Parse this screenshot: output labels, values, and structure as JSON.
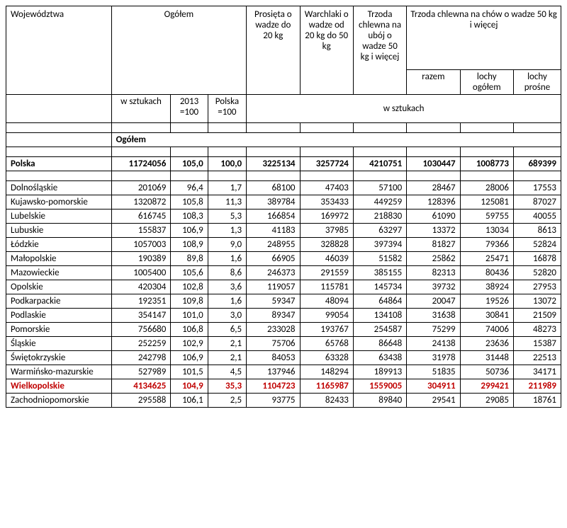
{
  "header": {
    "wojewodztwa": "Województwa",
    "ogolem": "Ogółem",
    "prosieta": "Prosięta o wadze do 20 kg",
    "warchlaki": "Warchlaki o wadze od 20 kg do 50 kg",
    "uboj": "Trzoda chlewna na ubój o wadze 50 kg i więcej",
    "chow": "Trzoda chlewna na chów o wadze 50 kg i więcej",
    "razem": "razem",
    "lochy_ogolem": "lochy ogółem",
    "lochy_prosne": "lochy prośne",
    "w_sztukach": "w sztukach",
    "y2013": "2013 =100",
    "polska100": "Polska =100"
  },
  "section_label": "Ogółem",
  "total_row": {
    "label": "Polska",
    "szt": "11724056",
    "y2013": "105,0",
    "pl100": "100,0",
    "v1": "3225134",
    "v2": "3257724",
    "v3": "4210751",
    "v4": "1030447",
    "v5": "1008773",
    "v6": "689399"
  },
  "rows": [
    {
      "label": "Dolnośląskie",
      "szt": "201069",
      "y2013": "96,4",
      "pl100": "1,7",
      "v1": "68100",
      "v2": "47403",
      "v3": "57100",
      "v4": "28467",
      "v5": "28006",
      "v6": "17553",
      "hl": false
    },
    {
      "label": "Kujawsko-pomorskie",
      "szt": "1320872",
      "y2013": "105,8",
      "pl100": "11,3",
      "v1": "389784",
      "v2": "353433",
      "v3": "449259",
      "v4": "128396",
      "v5": "125081",
      "v6": "87027",
      "hl": false
    },
    {
      "label": "Lubelskie",
      "szt": "616745",
      "y2013": "108,3",
      "pl100": "5,3",
      "v1": "166854",
      "v2": "169972",
      "v3": "218830",
      "v4": "61090",
      "v5": "59755",
      "v6": "40055",
      "hl": false
    },
    {
      "label": "Lubuskie",
      "szt": "155837",
      "y2013": "106,9",
      "pl100": "1,3",
      "v1": "41183",
      "v2": "37985",
      "v3": "63297",
      "v4": "13372",
      "v5": "13034",
      "v6": "8613",
      "hl": false
    },
    {
      "label": "Łódzkie",
      "szt": "1057003",
      "y2013": "108,9",
      "pl100": "9,0",
      "v1": "248955",
      "v2": "328828",
      "v3": "397394",
      "v4": "81827",
      "v5": "79366",
      "v6": "52824",
      "hl": false
    },
    {
      "label": "Małopolskie",
      "szt": "190389",
      "y2013": "89,8",
      "pl100": "1,6",
      "v1": "66905",
      "v2": "46039",
      "v3": "51582",
      "v4": "25862",
      "v5": "25471",
      "v6": "16878",
      "hl": false
    },
    {
      "label": "Mazowieckie",
      "szt": "1005400",
      "y2013": "105,6",
      "pl100": "8,6",
      "v1": "246373",
      "v2": "291559",
      "v3": "385155",
      "v4": "82313",
      "v5": "80436",
      "v6": "52820",
      "hl": false
    },
    {
      "label": "Opolskie",
      "szt": "420304",
      "y2013": "102,8",
      "pl100": "3,6",
      "v1": "119057",
      "v2": "115781",
      "v3": "145734",
      "v4": "39732",
      "v5": "38924",
      "v6": "27953",
      "hl": false
    },
    {
      "label": "Podkarpackie",
      "szt": "192351",
      "y2013": "109,8",
      "pl100": "1,6",
      "v1": "59347",
      "v2": "48094",
      "v3": "64864",
      "v4": "20047",
      "v5": "19526",
      "v6": "13072",
      "hl": false
    },
    {
      "label": "Podlaskie",
      "szt": "354147",
      "y2013": "101,0",
      "pl100": "3,0",
      "v1": "89347",
      "v2": "99054",
      "v3": "134108",
      "v4": "31638",
      "v5": "30841",
      "v6": "21509",
      "hl": false
    },
    {
      "label": "Pomorskie",
      "szt": "756680",
      "y2013": "106,8",
      "pl100": "6,5",
      "v1": "233028",
      "v2": "193767",
      "v3": "254587",
      "v4": "75299",
      "v5": "74006",
      "v6": "48273",
      "hl": false
    },
    {
      "label": "Śląskie",
      "szt": "252259",
      "y2013": "102,9",
      "pl100": "2,1",
      "v1": "75706",
      "v2": "65768",
      "v3": "86648",
      "v4": "24138",
      "v5": "23636",
      "v6": "15387",
      "hl": false
    },
    {
      "label": "Świętokrzyskie",
      "szt": "242798",
      "y2013": "106,9",
      "pl100": "2,1",
      "v1": "84053",
      "v2": "63328",
      "v3": "63438",
      "v4": "31978",
      "v5": "31448",
      "v6": "22513",
      "hl": false
    },
    {
      "label": "Warmińsko-mazurskie",
      "szt": "527989",
      "y2013": "101,5",
      "pl100": "4,5",
      "v1": "137946",
      "v2": "148294",
      "v3": "189913",
      "v4": "51835",
      "v5": "50736",
      "v6": "34171",
      "hl": false
    },
    {
      "label": "Wielkopolskie",
      "szt": "4134625",
      "y2013": "104,9",
      "pl100": "35,3",
      "v1": "1104723",
      "v2": "1165987",
      "v3": "1559005",
      "v4": "304911",
      "v5": "299421",
      "v6": "211989",
      "hl": true
    },
    {
      "label": "Zachodniopomorskie",
      "szt": "295588",
      "y2013": "106,1",
      "pl100": "2,5",
      "v1": "93775",
      "v2": "82433",
      "v3": "89840",
      "v4": "29541",
      "v5": "29085",
      "v6": "18761",
      "hl": false
    }
  ],
  "highlight_color": "#c00000"
}
